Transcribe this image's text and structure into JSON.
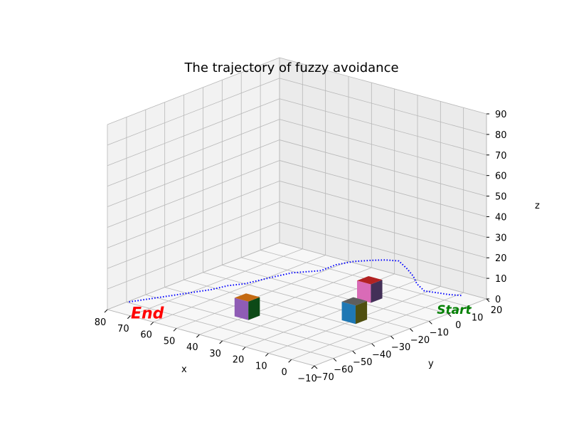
{
  "chart_data": {
    "type": "3d-line",
    "title": "The trajectory of fuzzy avoidance",
    "xlabel": "x",
    "ylabel": "y",
    "zlabel": "z",
    "xlim": [
      -10,
      80
    ],
    "ylim": [
      -70,
      20
    ],
    "zlim": [
      0,
      90
    ],
    "x_ticks": [
      "80",
      "70",
      "60",
      "50",
      "40",
      "30",
      "20",
      "10",
      "0",
      "−10"
    ],
    "y_ticks": [
      "−70",
      "−60",
      "−50",
      "−40",
      "−30",
      "−20",
      "−10",
      "0",
      "10",
      "20"
    ],
    "z_ticks": [
      "0",
      "10",
      "20",
      "30",
      "40",
      "50",
      "60",
      "70",
      "80",
      "90"
    ],
    "grid": true,
    "series": [
      {
        "style": "dotted",
        "color": "#0000ff",
        "points": [
          [
            -4,
            14,
            2
          ],
          [
            0,
            12,
            2
          ],
          [
            4,
            11,
            2
          ],
          [
            7,
            8,
            3
          ],
          [
            7,
            4,
            8
          ],
          [
            6,
            1,
            13
          ],
          [
            7,
            -1,
            17
          ],
          [
            9,
            -3,
            21
          ],
          [
            13,
            -5,
            21
          ],
          [
            18,
            -7,
            20
          ],
          [
            23,
            -10,
            19
          ],
          [
            28,
            -13,
            17
          ],
          [
            32,
            -16,
            14
          ],
          [
            35,
            -20,
            14
          ],
          [
            38,
            -24,
            14
          ],
          [
            41,
            -28,
            13
          ],
          [
            44,
            -33,
            12
          ],
          [
            47,
            -38,
            11
          ],
          [
            50,
            -43,
            11
          ],
          [
            53,
            -48,
            10
          ],
          [
            57,
            -52,
            9
          ],
          [
            61,
            -56,
            8
          ],
          [
            65,
            -60,
            7
          ],
          [
            69,
            -64,
            6
          ],
          [
            73,
            -68,
            5
          ]
        ]
      }
    ],
    "annotations": [
      {
        "text": "Start",
        "color": "#008000",
        "at": [
          -4,
          14,
          0
        ]
      },
      {
        "text": "End",
        "color": "#ff0000",
        "at": [
          75,
          -70,
          0
        ]
      }
    ],
    "obstacles": [
      {
        "center": [
          20,
          -5,
          0
        ],
        "size": 6,
        "colors": {
          "top": "#b22222",
          "front": "#d96bb7",
          "side": "#433058"
        }
      },
      {
        "center": [
          40,
          -45,
          0
        ],
        "size": 6,
        "colors": {
          "top": "#c46a12",
          "front": "#8f5cb5",
          "side": "#0d4a17"
        }
      },
      {
        "center": [
          10,
          -25,
          0
        ],
        "size": 6,
        "colors": {
          "top": "#5e5e5e",
          "front": "#1f78b4",
          "side": "#4f4f10"
        }
      }
    ]
  }
}
